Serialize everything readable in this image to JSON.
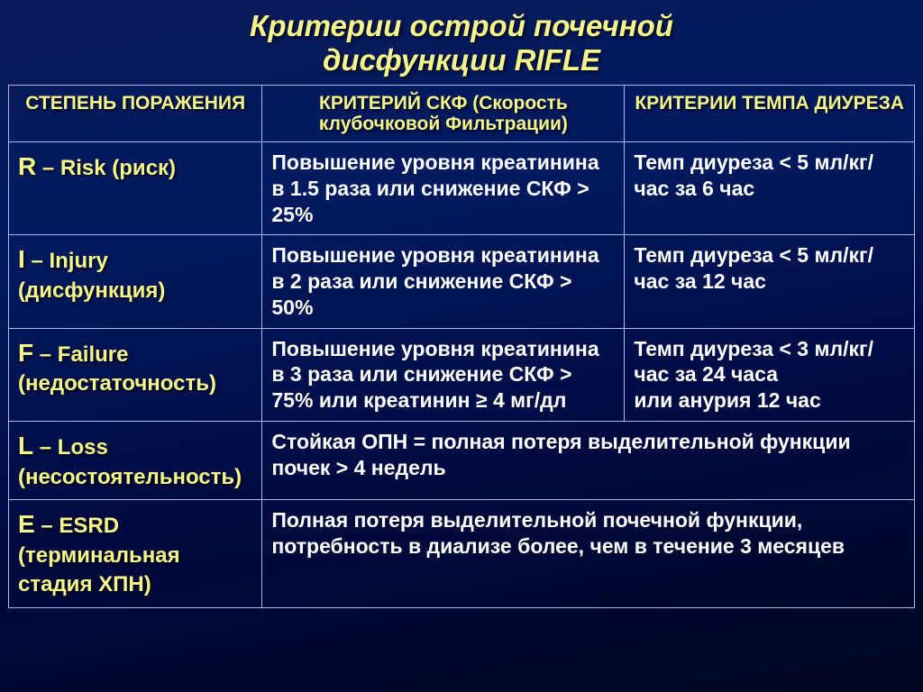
{
  "title_line1": "Критерии  острой  почечной",
  "title_line2": "дисфункции  RIFLE",
  "header": {
    "stage": "СТЕПЕНЬ ПОРАЖЕНИЯ",
    "skf": "КРИТЕРИЙ СКФ (Скорость клубочковой Фильтрации)",
    "diuresis": "КРИТЕРИИ ТЕМПА ДИУРЕЗА"
  },
  "rows": {
    "r": {
      "letter": "R",
      "stage": " – Risk (риск)",
      "skf": "Повышение уровня креатинина в 1.5 раза или снижение СКФ > 25%",
      "diuresis": "Темп диуреза < 5 мл/кг/час за 6 час"
    },
    "i": {
      "letter": "I",
      "stage": " – Injury (дисфункция)",
      "skf": "Повышение уровня креатинина в 2 раза или снижение СКФ > 50%",
      "diuresis": "Темп диуреза < 5 мл/кг/час за 12 час"
    },
    "f": {
      "letter": "F",
      "stage": " – Failure (недостаточность)",
      "skf": "Повышение уровня креатинина в 3 раза или снижение СКФ > 75% или креатинин ≥ 4 мг/дл",
      "diuresis": "Темп диуреза < 3 мл/кг/час за 24 часа\nили анурия 12 час"
    },
    "l": {
      "letter": "L",
      "stage": " – Loss (несостоятельность)",
      "combined": "Стойкая ОПН = полная потеря выделительной функции почек > 4 недель"
    },
    "e": {
      "letter": "E",
      "stage": " – ESRD (терминальная стадия ХПН)",
      "combined": "Полная потеря выделительной почечной функции, потребность в диализе более, чем в течение 3 месяцев"
    }
  },
  "style": {
    "title_color": "#f5f58a",
    "stage_color": "#f5f58a",
    "criteria_color": "#ffffff",
    "border_color": "#aab8e8",
    "bg_gradient_top": "#0a1a5a",
    "bg_gradient_bottom": "#000520"
  }
}
